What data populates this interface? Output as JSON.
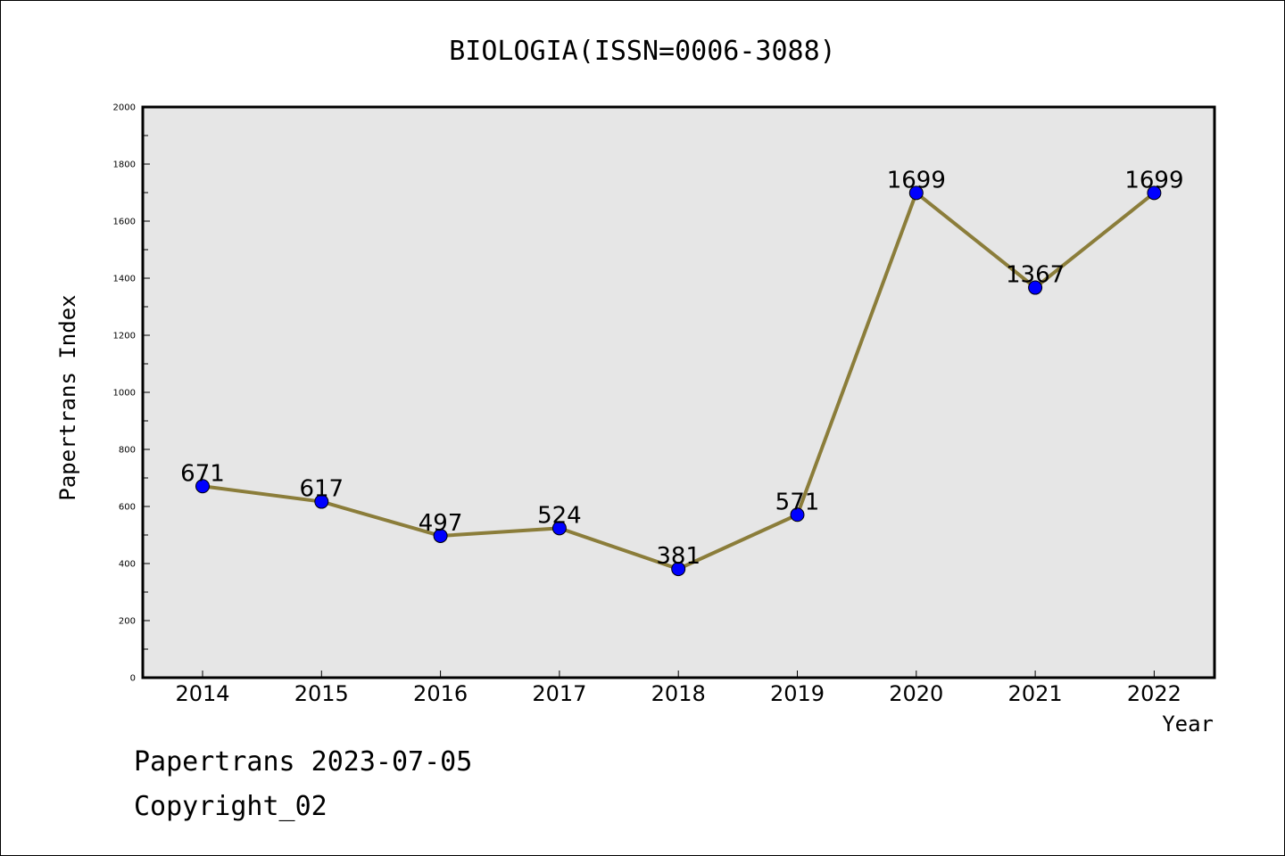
{
  "chart_data": {
    "type": "line",
    "title": "BIOLOGIA(ISSN=0006-3088)",
    "xlabel": "Year",
    "ylabel": "Papertrans Index",
    "categories": [
      "2014",
      "2015",
      "2016",
      "2017",
      "2018",
      "2019",
      "2020",
      "2021",
      "2022"
    ],
    "values": [
      671,
      617,
      497,
      524,
      381,
      571,
      1699,
      1367,
      1699
    ],
    "ylim": [
      0,
      2000
    ],
    "yticks": [
      "0",
      "200",
      "400",
      "600",
      "800",
      "1000",
      "1200",
      "1400",
      "1600",
      "1800",
      "2000"
    ],
    "grid": false,
    "line_color": "#8b7d3a",
    "marker_color": "#0000ff",
    "plot_background": "#e6e6e6"
  },
  "footer": {
    "line1": "Papertrans 2023-07-05",
    "line2": "Copyright_02"
  }
}
